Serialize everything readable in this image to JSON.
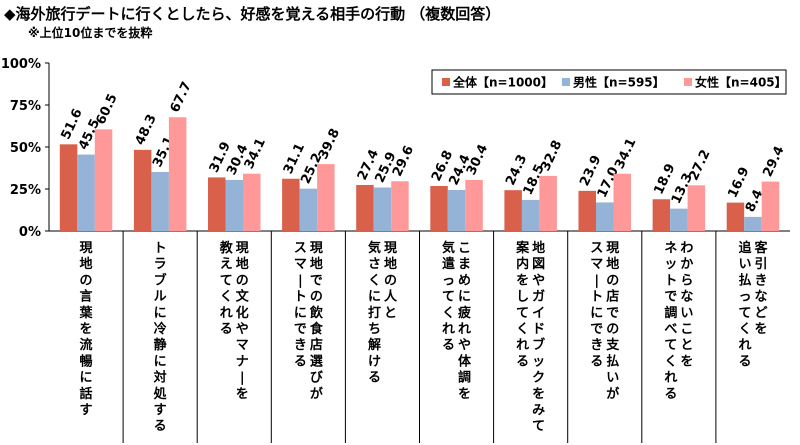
{
  "header": {
    "title": "◆海外旅行デートに行くとしたら、好感を覚える相手の行動 （複数回答）",
    "subtitle": "※上位10位までを抜粋"
  },
  "chart_data": {
    "type": "bar",
    "title": "◆海外旅行デートに行くとしたら、好感を覚える相手の行動 （複数回答）",
    "subtitle": "※上位10位までを抜粋",
    "ylim": [
      0,
      100
    ],
    "yticks": [
      0,
      25,
      50,
      75,
      100
    ],
    "ytick_labels": [
      "0%",
      "25%",
      "50%",
      "75%",
      "100%"
    ],
    "legend_position": "top-right",
    "grid": false,
    "categories": [
      "現地の言葉を流暢に話す",
      "トラブルに冷静に対処する",
      "現地の文化やマナーを教えてくれる",
      "現地での飲食店選びがスマートにできる",
      "現地の人と気さくに打ち解ける",
      "こまめに疲れや体調を気遣ってくれる",
      "地図やガイドブックをみて案内をしてくれる",
      "現地の店での支払いがスマートにできる",
      "わからないことをネットで調べてくれる",
      "客引きなどを追い払ってくれる"
    ],
    "category_lines": [
      [
        "現地の言葉を流暢に話す"
      ],
      [
        "トラブルに冷静に対処する"
      ],
      [
        "現地の文化やマナーを",
        "教えてくれる"
      ],
      [
        "現地での飲食店選びが",
        "スマートにできる"
      ],
      [
        "現地の人と",
        "気さくに打ち解ける"
      ],
      [
        "こまめに疲れや体調を",
        "気遣ってくれる"
      ],
      [
        "地図やガイドブックをみて",
        "案内をしてくれる"
      ],
      [
        "現地の店での支払いが",
        "スマートにできる"
      ],
      [
        "わからないことを",
        "ネットで調べてくれる"
      ],
      [
        "客引きなどを",
        "追い払ってくれる"
      ]
    ],
    "series": [
      {
        "name": "全体【n=1000】",
        "color": "#d9604a",
        "values": [
          51.6,
          48.3,
          31.9,
          31.1,
          27.4,
          26.8,
          24.3,
          23.9,
          18.9,
          16.9
        ]
      },
      {
        "name": "男性【n=595】",
        "color": "#95b3d7",
        "values": [
          45.5,
          35.1,
          30.4,
          25.2,
          25.9,
          24.4,
          18.5,
          17.0,
          13.3,
          8.4
        ]
      },
      {
        "name": "女性【n=405】",
        "color": "#ff9999",
        "values": [
          60.5,
          67.7,
          34.1,
          39.8,
          29.6,
          30.4,
          32.8,
          34.1,
          27.2,
          29.4
        ]
      }
    ]
  }
}
